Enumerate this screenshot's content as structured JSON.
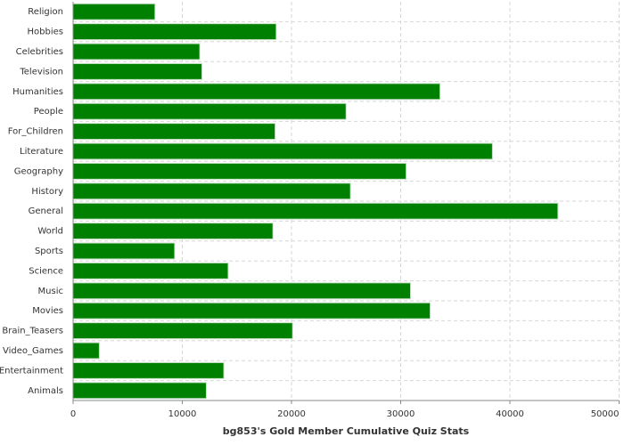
{
  "chart_data": {
    "type": "bar",
    "orientation": "horizontal",
    "x_label": "bg853's Gold Member Cumulative Quiz Stats",
    "categories": [
      "Religion",
      "Hobbies",
      "Celebrities",
      "Television",
      "Humanities",
      "People",
      "For_Children",
      "Literature",
      "Geography",
      "History",
      "General",
      "World",
      "Sports",
      "Science",
      "Music",
      "Movies",
      "Brain_Teasers",
      "Video_Games",
      "Entertainment",
      "Animals"
    ],
    "values": [
      7500,
      18600,
      11600,
      11800,
      33600,
      25000,
      18500,
      38400,
      30500,
      25400,
      44400,
      18300,
      9300,
      14200,
      30900,
      32700,
      20100,
      2400,
      13800,
      12200
    ],
    "color": "#008000",
    "xlim": [
      0,
      50000
    ],
    "xticks": [
      0,
      10000,
      20000,
      30000,
      40000,
      50000
    ],
    "grid": true
  }
}
